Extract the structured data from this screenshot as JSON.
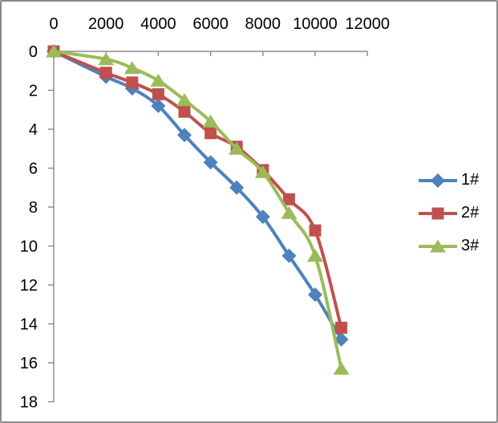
{
  "window": {
    "background": "#ffffff",
    "border_color": "#8a8a8a"
  },
  "chart_data": {
    "type": "line",
    "title": "",
    "xlabel": "",
    "ylabel": "",
    "grid": false,
    "smooth_lines": true,
    "axis_color": "#8a8a8a",
    "text_color": "#000000",
    "x": [
      0,
      2000,
      3000,
      4000,
      5000,
      6000,
      7000,
      8000,
      9000,
      10000,
      11000
    ],
    "series": [
      {
        "name": "1#",
        "color": "#4F81BD",
        "marker": "diamond",
        "values": [
          0,
          1.3,
          1.9,
          2.8,
          4.3,
          5.7,
          7.0,
          8.5,
          10.5,
          12.5,
          14.8
        ]
      },
      {
        "name": "2#",
        "color": "#C0504D",
        "marker": "square",
        "values": [
          0,
          1.1,
          1.6,
          2.2,
          3.1,
          4.2,
          4.9,
          6.1,
          7.6,
          9.2,
          14.2
        ]
      },
      {
        "name": "3#",
        "color": "#9BBB59",
        "marker": "triangle",
        "values": [
          0,
          0.4,
          0.85,
          1.5,
          2.5,
          3.6,
          5.0,
          6.2,
          8.3,
          10.5,
          16.3
        ]
      }
    ],
    "x_axis": {
      "position": "top",
      "min": 0,
      "max": 12000,
      "tick_step": 2000,
      "tick_labels": [
        "0",
        "2000",
        "4000",
        "6000",
        "8000",
        "10000",
        "12000"
      ]
    },
    "y_axis": {
      "position": "left",
      "min": 0,
      "max": 18,
      "tick_step": 2,
      "inverted": true,
      "tick_labels": [
        "0",
        "2",
        "4",
        "6",
        "8",
        "10",
        "12",
        "14",
        "16",
        "18"
      ]
    },
    "legend": {
      "position": "right",
      "entries": [
        "1#",
        "2#",
        "3#"
      ]
    }
  }
}
